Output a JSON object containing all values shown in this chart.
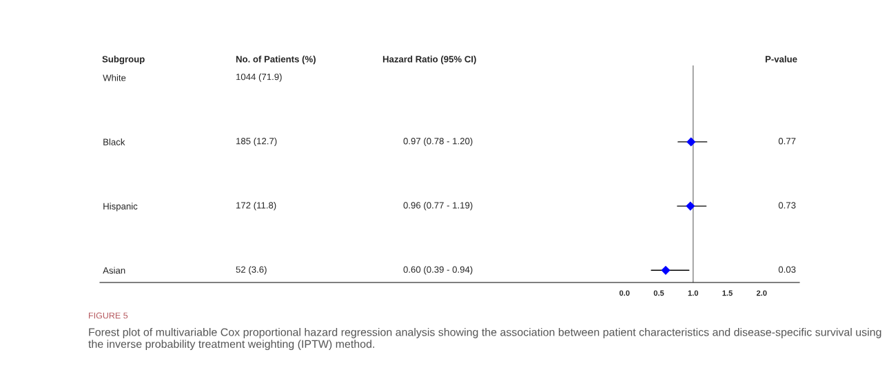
{
  "chart_data": {
    "type": "scatter",
    "categories": [
      "White",
      "Black",
      "Hispanic",
      "Asian"
    ],
    "values": [
      null,
      0.97,
      0.96,
      0.6
    ],
    "errors": [
      null,
      [
        0.78,
        1.2
      ],
      [
        0.77,
        1.19
      ],
      [
        0.39,
        0.94
      ]
    ],
    "color": "#0000ff",
    "marker": "diamond",
    "orientation": "horizontal",
    "xlim": [
      -7.65,
      2.55
    ],
    "xticks": [
      {
        "value": 0,
        "label": "0.0"
      },
      {
        "value": 0.5,
        "label": "0.5"
      },
      {
        "value": 1,
        "label": "1.0"
      },
      {
        "value": 1.5,
        "label": "1.5"
      },
      {
        "value": 2,
        "label": "2.0"
      }
    ],
    "ref_lines": [
      {
        "axis": "x",
        "value": 1,
        "color": "#808080"
      }
    ],
    "annotations": [
      "Subgroup",
      "No. of Patients (%)",
      "Hazard Ratio (95% CI)",
      "P-value",
      "1044 (71.9)",
      "185 (12.7)",
      "172 (11.8)",
      "52 (3.6)",
      "0.97 (0.78 - 1.20)",
      "0.96 (0.77 - 1.19)",
      "0.60 (0.39 - 0.94)",
      "0.77",
      "0.73",
      "0.03",
      "FIGURE 5",
      "Forest plot of multivariable Cox proportional hazard regression analysis showing the association between patient characteristics and disease-specific survival using the inverse probability treatment weighting (IPTW) method."
    ]
  }
}
